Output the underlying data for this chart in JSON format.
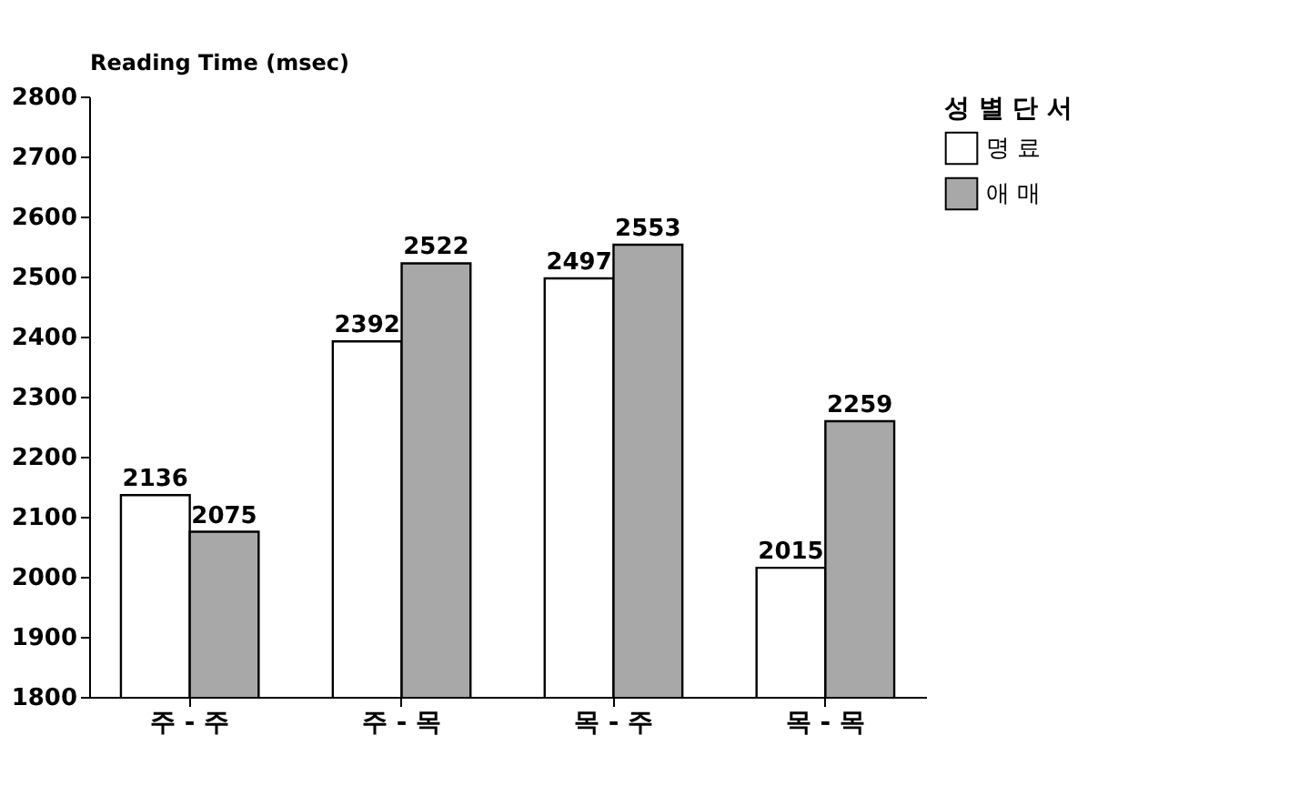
{
  "chart_data": {
    "type": "bar",
    "ylabel": "Reading Time (msec)",
    "legend_title": "성 별 단 서",
    "categories": [
      "주 - 주",
      "주 - 목",
      "목 - 주",
      "목 - 목"
    ],
    "series": [
      {
        "name": "명 료",
        "color": "#ffffff",
        "values": [
          2136,
          2392,
          2497,
          2015
        ]
      },
      {
        "name": "애 매",
        "color": "#a8a8a8",
        "values": [
          2075,
          2522,
          2553,
          2259
        ]
      }
    ],
    "ylim": [
      1800,
      2800
    ],
    "yticks": [
      1800,
      1900,
      2000,
      2100,
      2200,
      2300,
      2400,
      2500,
      2600,
      2700,
      2800
    ],
    "data_labels": true,
    "grid": false,
    "legend": "top right"
  }
}
